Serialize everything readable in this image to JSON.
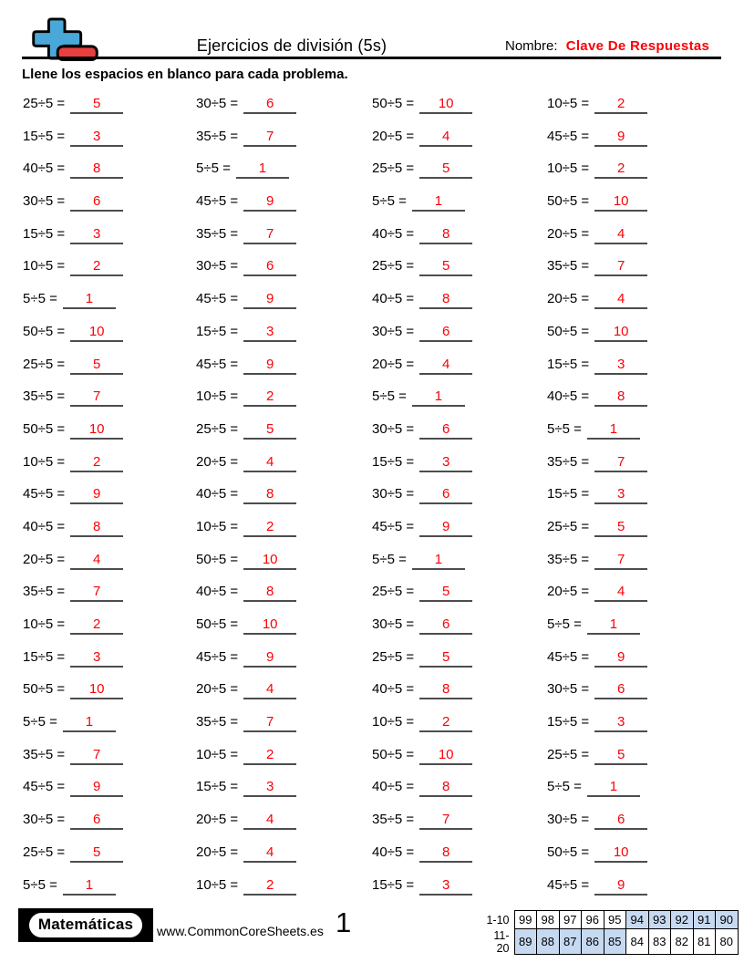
{
  "header": {
    "title": "Ejercicios de división (5s)",
    "name_label": "Nombre:",
    "name_value": "Clave De Respuestas",
    "instruction": "Llene los espacios en blanco para cada problema."
  },
  "colors": {
    "answer_red": "#fb0006",
    "underline_gray": "#4d4d4d",
    "score_highlight_blue": "#c6d9f1",
    "logo_blue": "#4aa8d8",
    "logo_red": "#e8403f"
  },
  "problems": {
    "columns": [
      {
        "items": [
          {
            "q": "25÷5 =",
            "a": "5"
          },
          {
            "q": "15÷5 =",
            "a": "3"
          },
          {
            "q": "40÷5 =",
            "a": "8"
          },
          {
            "q": "30÷5 =",
            "a": "6"
          },
          {
            "q": "15÷5 =",
            "a": "3"
          },
          {
            "q": "10÷5 =",
            "a": "2"
          },
          {
            "q": "5÷5 =",
            "a": "1"
          },
          {
            "q": "50÷5 =",
            "a": "10"
          },
          {
            "q": "25÷5 =",
            "a": "5"
          },
          {
            "q": "35÷5 =",
            "a": "7"
          },
          {
            "q": "50÷5 =",
            "a": "10"
          },
          {
            "q": "10÷5 =",
            "a": "2"
          },
          {
            "q": "45÷5 =",
            "a": "9"
          },
          {
            "q": "40÷5 =",
            "a": "8"
          },
          {
            "q": "20÷5 =",
            "a": "4"
          },
          {
            "q": "35÷5 =",
            "a": "7"
          },
          {
            "q": "10÷5 =",
            "a": "2"
          },
          {
            "q": "15÷5 =",
            "a": "3"
          },
          {
            "q": "50÷5 =",
            "a": "10"
          },
          {
            "q": "5÷5 =",
            "a": "1"
          },
          {
            "q": "35÷5 =",
            "a": "7"
          },
          {
            "q": "45÷5 =",
            "a": "9"
          },
          {
            "q": "30÷5 =",
            "a": "6"
          },
          {
            "q": "25÷5 =",
            "a": "5"
          },
          {
            "q": "5÷5 =",
            "a": "1"
          }
        ]
      },
      {
        "items": [
          {
            "q": "30÷5 =",
            "a": "6"
          },
          {
            "q": "35÷5 =",
            "a": "7"
          },
          {
            "q": "5÷5 =",
            "a": "1"
          },
          {
            "q": "45÷5 =",
            "a": "9"
          },
          {
            "q": "35÷5 =",
            "a": "7"
          },
          {
            "q": "30÷5 =",
            "a": "6"
          },
          {
            "q": "45÷5 =",
            "a": "9"
          },
          {
            "q": "15÷5 =",
            "a": "3"
          },
          {
            "q": "45÷5 =",
            "a": "9"
          },
          {
            "q": "10÷5 =",
            "a": "2"
          },
          {
            "q": "25÷5 =",
            "a": "5"
          },
          {
            "q": "20÷5 =",
            "a": "4"
          },
          {
            "q": "40÷5 =",
            "a": "8"
          },
          {
            "q": "10÷5 =",
            "a": "2"
          },
          {
            "q": "50÷5 =",
            "a": "10"
          },
          {
            "q": "40÷5 =",
            "a": "8"
          },
          {
            "q": "50÷5 =",
            "a": "10"
          },
          {
            "q": "45÷5 =",
            "a": "9"
          },
          {
            "q": "20÷5 =",
            "a": "4"
          },
          {
            "q": "35÷5 =",
            "a": "7"
          },
          {
            "q": "10÷5 =",
            "a": "2"
          },
          {
            "q": "15÷5 =",
            "a": "3"
          },
          {
            "q": "20÷5 =",
            "a": "4"
          },
          {
            "q": "20÷5 =",
            "a": "4"
          },
          {
            "q": "10÷5 =",
            "a": "2"
          }
        ]
      },
      {
        "items": [
          {
            "q": "50÷5 =",
            "a": "10"
          },
          {
            "q": "20÷5 =",
            "a": "4"
          },
          {
            "q": "25÷5 =",
            "a": "5"
          },
          {
            "q": "5÷5 =",
            "a": "1"
          },
          {
            "q": "40÷5 =",
            "a": "8"
          },
          {
            "q": "25÷5 =",
            "a": "5"
          },
          {
            "q": "40÷5 =",
            "a": "8"
          },
          {
            "q": "30÷5 =",
            "a": "6"
          },
          {
            "q": "20÷5 =",
            "a": "4"
          },
          {
            "q": "5÷5 =",
            "a": "1"
          },
          {
            "q": "30÷5 =",
            "a": "6"
          },
          {
            "q": "15÷5 =",
            "a": "3"
          },
          {
            "q": "30÷5 =",
            "a": "6"
          },
          {
            "q": "45÷5 =",
            "a": "9"
          },
          {
            "q": "5÷5 =",
            "a": "1"
          },
          {
            "q": "25÷5 =",
            "a": "5"
          },
          {
            "q": "30÷5 =",
            "a": "6"
          },
          {
            "q": "25÷5 =",
            "a": "5"
          },
          {
            "q": "40÷5 =",
            "a": "8"
          },
          {
            "q": "10÷5 =",
            "a": "2"
          },
          {
            "q": "50÷5 =",
            "a": "10"
          },
          {
            "q": "40÷5 =",
            "a": "8"
          },
          {
            "q": "35÷5 =",
            "a": "7"
          },
          {
            "q": "40÷5 =",
            "a": "8"
          },
          {
            "q": "15÷5 =",
            "a": "3"
          }
        ]
      },
      {
        "items": [
          {
            "q": "10÷5 =",
            "a": "2"
          },
          {
            "q": "45÷5 =",
            "a": "9"
          },
          {
            "q": "10÷5 =",
            "a": "2"
          },
          {
            "q": "50÷5 =",
            "a": "10"
          },
          {
            "q": "20÷5 =",
            "a": "4"
          },
          {
            "q": "35÷5 =",
            "a": "7"
          },
          {
            "q": "20÷5 =",
            "a": "4"
          },
          {
            "q": "50÷5 =",
            "a": "10"
          },
          {
            "q": "15÷5 =",
            "a": "3"
          },
          {
            "q": "40÷5 =",
            "a": "8"
          },
          {
            "q": "5÷5 =",
            "a": "1"
          },
          {
            "q": "35÷5 =",
            "a": "7"
          },
          {
            "q": "15÷5 =",
            "a": "3"
          },
          {
            "q": "25÷5 =",
            "a": "5"
          },
          {
            "q": "35÷5 =",
            "a": "7"
          },
          {
            "q": "20÷5 =",
            "a": "4"
          },
          {
            "q": "5÷5 =",
            "a": "1"
          },
          {
            "q": "45÷5 =",
            "a": "9"
          },
          {
            "q": "30÷5 =",
            "a": "6"
          },
          {
            "q": "15÷5 =",
            "a": "3"
          },
          {
            "q": "25÷5 =",
            "a": "5"
          },
          {
            "q": "5÷5 =",
            "a": "1"
          },
          {
            "q": "30÷5 =",
            "a": "6"
          },
          {
            "q": "50÷5 =",
            "a": "10"
          },
          {
            "q": "45÷5 =",
            "a": "9"
          }
        ]
      }
    ]
  },
  "footer": {
    "brand": "Matemáticas",
    "website": "www.CommonCoreSheets.es",
    "page_number": "1",
    "score_table": {
      "rows": [
        {
          "label": "1-10",
          "cells": [
            "99",
            "98",
            "97",
            "96",
            "95",
            "94",
            "93",
            "92",
            "91",
            "90"
          ],
          "highlighted": [
            false,
            false,
            false,
            false,
            false,
            true,
            true,
            true,
            true,
            true
          ]
        },
        {
          "label": "11-20",
          "cells": [
            "89",
            "88",
            "87",
            "86",
            "85",
            "84",
            "83",
            "82",
            "81",
            "80"
          ],
          "highlighted": [
            true,
            true,
            true,
            true,
            true,
            false,
            false,
            false,
            false,
            false
          ]
        }
      ]
    }
  }
}
